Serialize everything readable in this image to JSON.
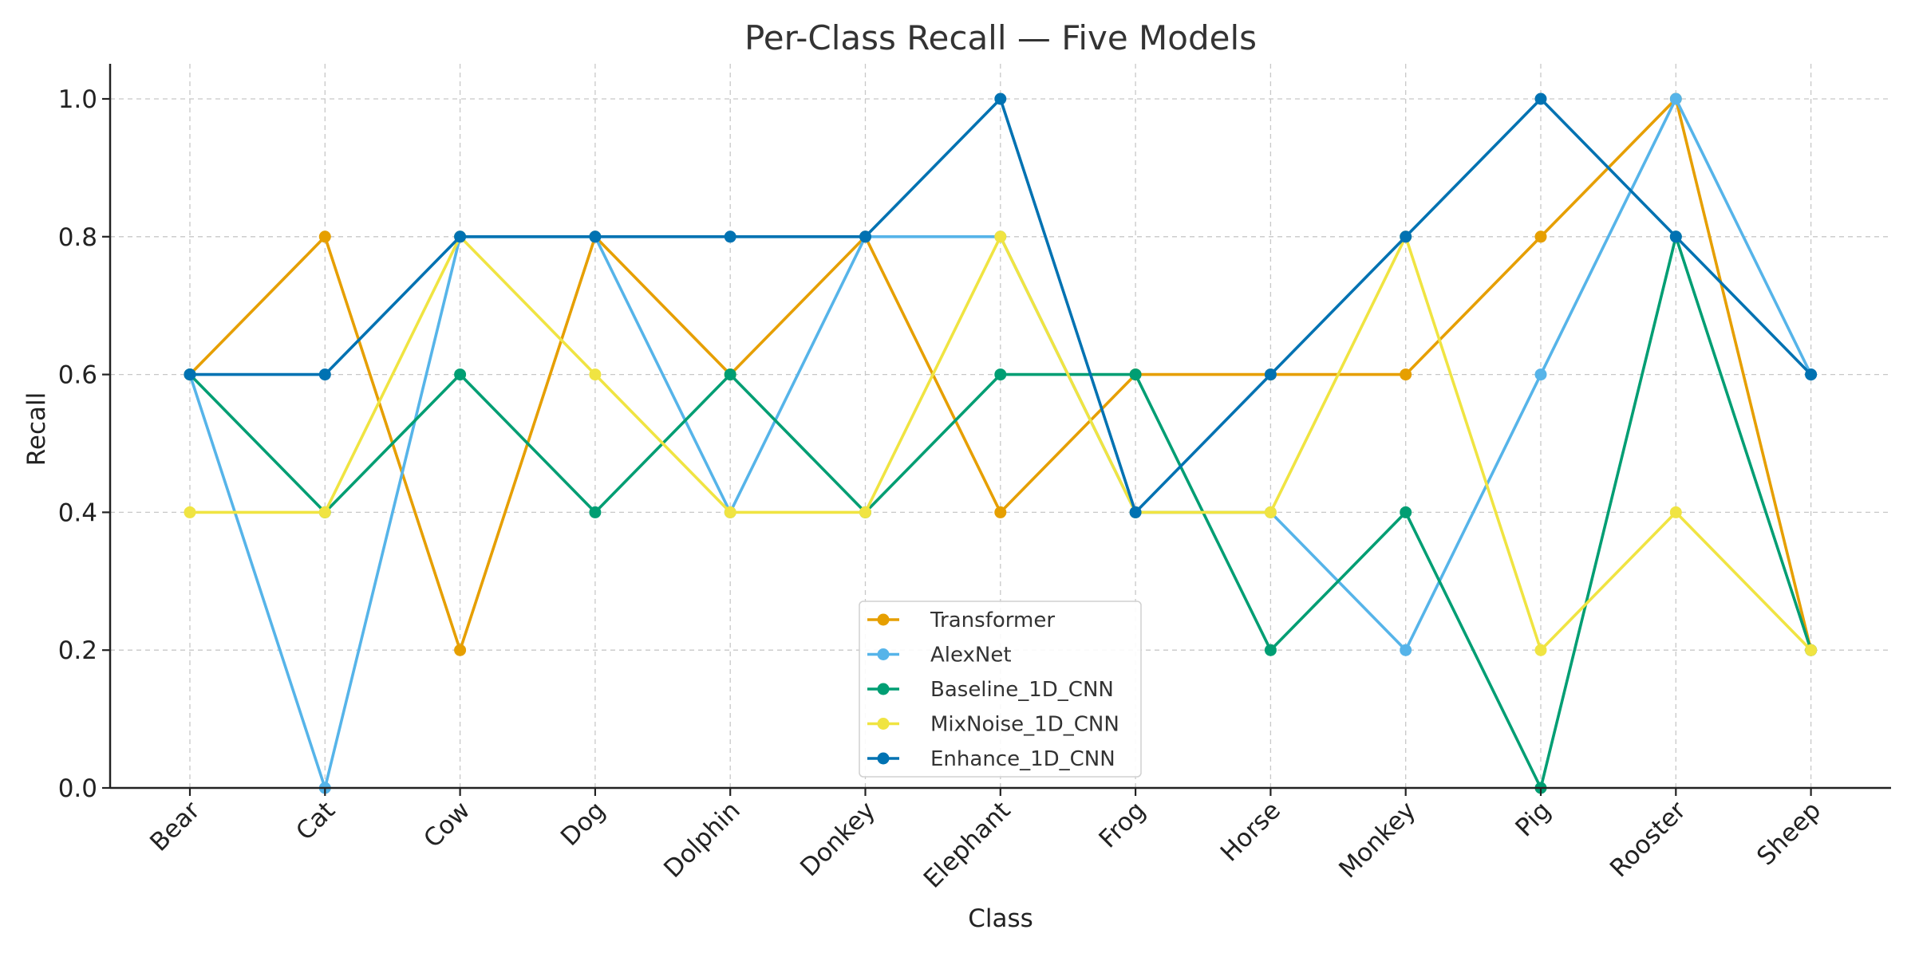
{
  "chart_data": {
    "type": "line",
    "title": "Per-Class Recall — Five Models",
    "xlabel": "Class",
    "ylabel": "Recall",
    "categories": [
      "Bear",
      "Cat",
      "Cow",
      "Dog",
      "Dolphin",
      "Donkey",
      "Elephant",
      "Frog",
      "Horse",
      "Monkey",
      "Pig",
      "Rooster",
      "Sheep"
    ],
    "ylim": [
      0,
      1.05
    ],
    "yticks": [
      "0.0",
      "0.2",
      "0.4",
      "0.6",
      "0.8",
      "1.0"
    ],
    "grid": true,
    "legend_position": "bottom-center",
    "series": [
      {
        "name": "Transformer",
        "color": "#E69F00",
        "values": [
          0.6,
          0.8,
          0.2,
          0.8,
          0.6,
          0.8,
          0.4,
          0.6,
          0.6,
          0.6,
          0.8,
          1.0,
          0.2
        ]
      },
      {
        "name": "AlexNet",
        "color": "#56B4E9",
        "values": [
          0.6,
          0.0,
          0.8,
          0.8,
          0.4,
          0.8,
          0.8,
          0.4,
          0.4,
          0.2,
          0.6,
          1.0,
          0.6
        ]
      },
      {
        "name": "Baseline_1D_CNN",
        "color": "#009E73",
        "values": [
          0.6,
          0.4,
          0.6,
          0.4,
          0.6,
          0.4,
          0.6,
          0.6,
          0.2,
          0.4,
          0.0,
          0.8,
          0.2
        ]
      },
      {
        "name": "MixNoise_1D_CNN",
        "color": "#F0E442",
        "values": [
          0.4,
          0.4,
          0.8,
          0.6,
          0.4,
          0.4,
          0.8,
          0.4,
          0.4,
          0.8,
          0.2,
          0.4,
          0.2
        ]
      },
      {
        "name": "Enhance_1D_CNN",
        "color": "#0072B2",
        "values": [
          0.6,
          0.6,
          0.8,
          0.8,
          0.8,
          0.8,
          1.0,
          0.4,
          0.6,
          0.8,
          1.0,
          0.8,
          0.6
        ]
      }
    ]
  }
}
